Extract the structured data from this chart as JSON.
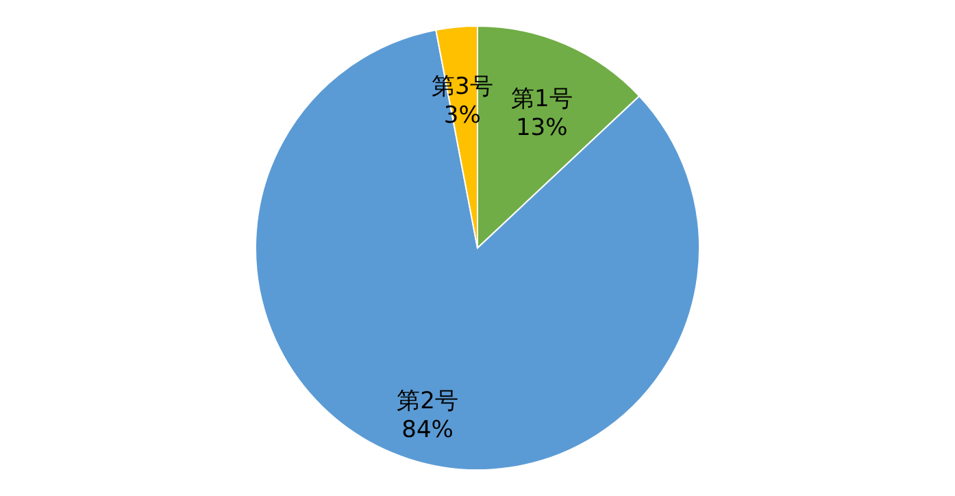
{
  "chart_data": {
    "type": "pie",
    "categories": [
      "第1号",
      "第2号",
      "第3号"
    ],
    "values": [
      13,
      84,
      3
    ],
    "colors": [
      "#70ad47",
      "#5b9bd5",
      "#ffc000"
    ],
    "value_labels": [
      "13%",
      "84%",
      "3%"
    ],
    "legend": false
  }
}
